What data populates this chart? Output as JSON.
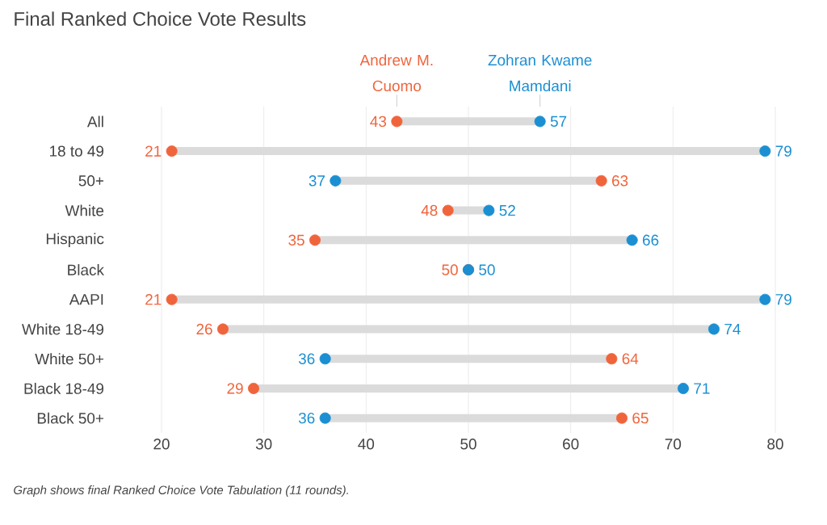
{
  "chart_data": {
    "type": "scatter",
    "orientation": "horizontal",
    "title": "Final Ranked Choice Vote Results",
    "categories": [
      "All",
      "18 to 49",
      "50+",
      "White",
      "Hispanic",
      "Black",
      "AAPI",
      "White 18-49",
      "White 50+",
      "Black 18-49",
      "Black 50+"
    ],
    "series": [
      {
        "name": "Andrew M. Cuomo",
        "color": "#f0643c",
        "values": [
          43,
          21,
          63,
          48,
          35,
          50,
          21,
          26,
          64,
          29,
          65
        ]
      },
      {
        "name": "Zohran Kwame Mamdani",
        "color": "#1b8fd2",
        "values": [
          57,
          79,
          37,
          52,
          66,
          50,
          79,
          74,
          36,
          71,
          36
        ]
      }
    ],
    "xlim": [
      20,
      80
    ],
    "xticks": [
      20,
      30,
      40,
      50,
      60,
      70,
      80
    ],
    "grid": "x",
    "legend": "top",
    "marker": "circle",
    "data_labels": true,
    "annotations": [
      "Graph shows final Ranked Choice Vote Tabulation (11 rounds)."
    ]
  }
}
